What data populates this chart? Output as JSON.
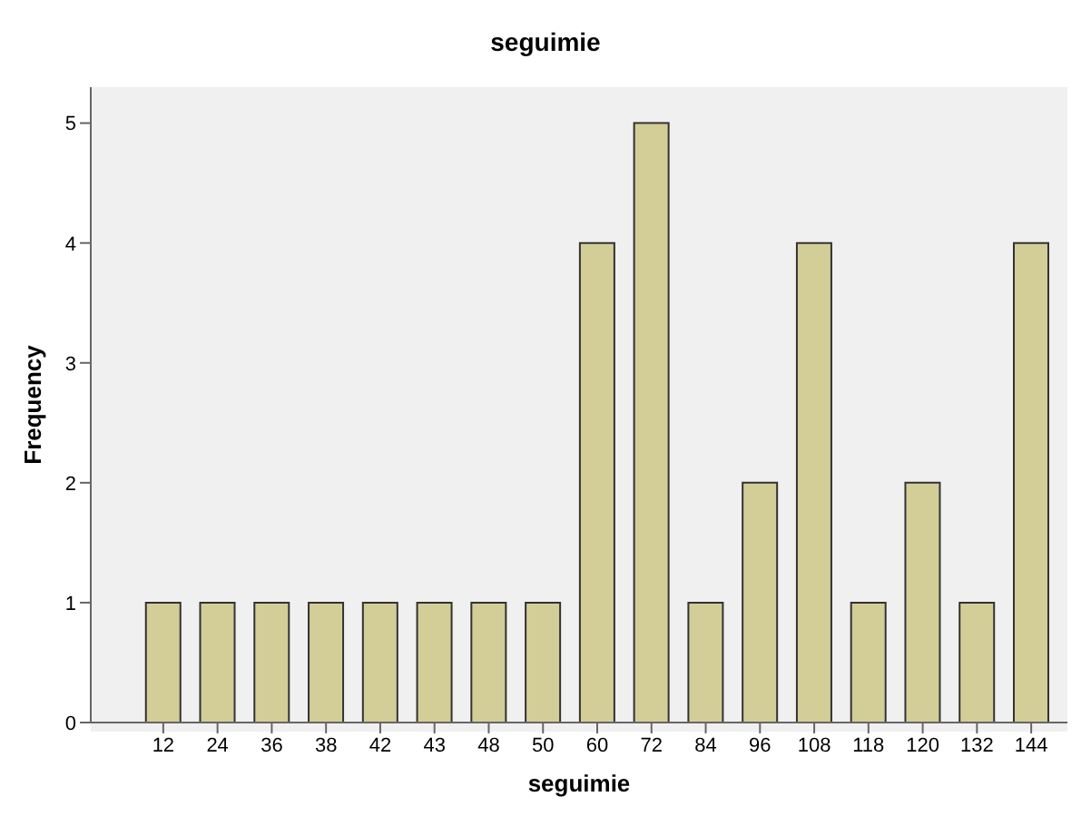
{
  "chart_data": {
    "type": "bar",
    "title": "seguimie",
    "xlabel": "seguimie",
    "ylabel": "Frequency",
    "categories": [
      "12",
      "24",
      "36",
      "38",
      "42",
      "43",
      "48",
      "50",
      "60",
      "72",
      "84",
      "96",
      "108",
      "118",
      "120",
      "132",
      "144"
    ],
    "values": [
      1,
      1,
      1,
      1,
      1,
      1,
      1,
      1,
      4,
      5,
      1,
      2,
      4,
      1,
      2,
      1,
      4
    ],
    "color": "#d3ce97",
    "ylim": [
      0,
      5.3
    ],
    "yticks": [
      0,
      1,
      2,
      3,
      4,
      5
    ],
    "grid": false,
    "legend": false
  }
}
